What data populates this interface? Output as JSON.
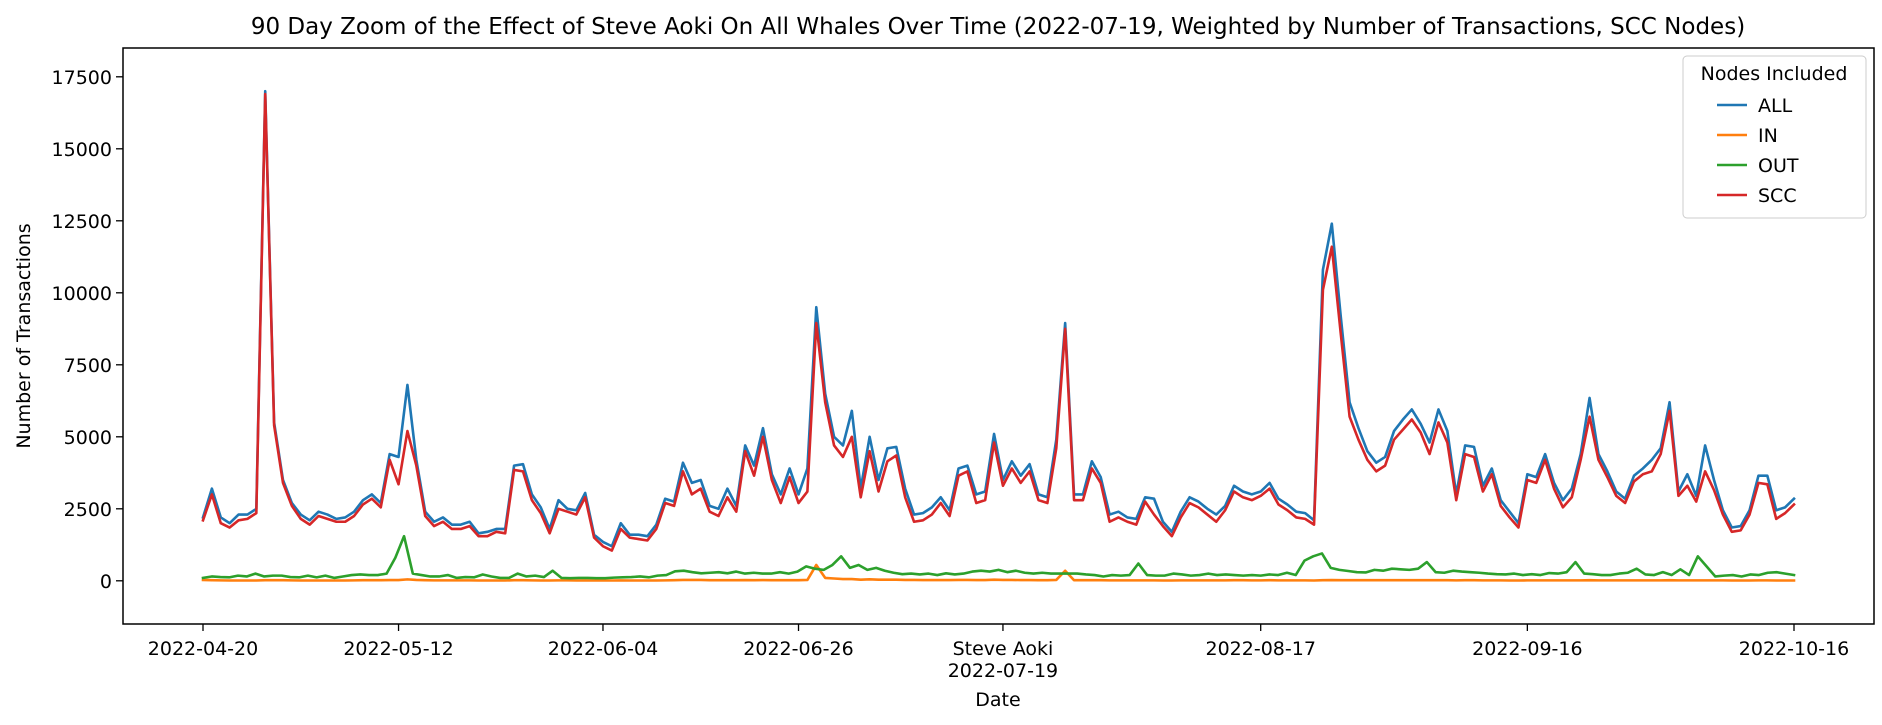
{
  "chart_data": {
    "type": "line",
    "title": "90 Day Zoom of the Effect of Steve Aoki On All Whales Over Time (2022-07-19, Weighted by Number of Transactions, SCC Nodes)",
    "xlabel": "Date",
    "ylabel": "Number of Transactions",
    "x_start": "2022-04-20",
    "x_end": "2022-10-16",
    "x_ticks": [
      "2022-04-20",
      "2022-05-12",
      "2022-06-04",
      "2022-06-26",
      "2022-07-19",
      "2022-08-17",
      "2022-09-16",
      "2022-10-16"
    ],
    "event_label": "Steve Aoki",
    "ylim": [
      -1500,
      18500
    ],
    "y_ticks": [
      0,
      2500,
      5000,
      7500,
      10000,
      12500,
      15000,
      17500
    ],
    "y_tick_labels": [
      "0",
      "2500",
      "5000",
      "7500",
      "10000",
      "12500",
      "15000",
      "17500"
    ],
    "grid": false,
    "legend": {
      "title": "Nodes Included",
      "placement": "top-right"
    },
    "series": [
      {
        "name": "ALL",
        "color": "#1f77b4",
        "values": [
          2200,
          3200,
          2200,
          2000,
          2300,
          2300,
          2500,
          17000,
          5500,
          3500,
          2700,
          2300,
          2100,
          2400,
          2300,
          2150,
          2200,
          2400,
          2800,
          3000,
          2700,
          4400,
          4300,
          6800,
          4200,
          2400,
          2050,
          2200,
          1950,
          1950,
          2050,
          1650,
          1700,
          1800,
          1800,
          4000,
          4050,
          3000,
          2550,
          1800,
          2800,
          2500,
          2450,
          3050,
          1600,
          1350,
          1200,
          2000,
          1600,
          1600,
          1550,
          1950,
          2850,
          2750,
          4100,
          3400,
          3500,
          2600,
          2500,
          3200,
          2600,
          4700,
          4000,
          5300,
          3700,
          3000,
          3900,
          3000,
          3900,
          9500,
          6500,
          5000,
          4700,
          5900,
          3200,
          5000,
          3500,
          4600,
          4650,
          3200,
          2300,
          2350,
          2550,
          2900,
          2450,
          3900,
          4000,
          3000,
          3100,
          5100,
          3500,
          4150,
          3650,
          4050,
          3000,
          2900,
          4900,
          8950,
          3000,
          3000,
          4150,
          3600,
          2300,
          2400,
          2200,
          2150,
          2900,
          2850,
          2050,
          1700,
          2400,
          2900,
          2750,
          2500,
          2300,
          2600,
          3300,
          3100,
          3000,
          3100,
          3400,
          2850,
          2650,
          2400,
          2350,
          2100,
          10800,
          12400,
          9200,
          6200,
          5300,
          4500,
          4100,
          4300,
          5200,
          5600,
          5950,
          5450,
          4800,
          5950,
          5200,
          3000,
          4700,
          4650,
          3300,
          3900,
          2800,
          2400,
          2000,
          3700,
          3600,
          4400,
          3400,
          2800,
          3200,
          4400,
          6350,
          4400,
          3800,
          3100,
          2850,
          3650,
          3900,
          4200,
          4600,
          6200,
          3100,
          3700,
          2950,
          4700,
          3500,
          2450,
          1850,
          1900,
          2450,
          3650,
          3650,
          2450,
          2550,
          2850
        ]
      },
      {
        "name": "IN",
        "color": "#ff7f0e",
        "values": [
          30,
          20,
          15,
          10,
          10,
          10,
          10,
          20,
          20,
          20,
          15,
          10,
          10,
          10,
          10,
          10,
          10,
          15,
          20,
          20,
          20,
          25,
          25,
          50,
          30,
          20,
          15,
          15,
          15,
          15,
          15,
          10,
          10,
          10,
          10,
          20,
          20,
          15,
          10,
          10,
          15,
          15,
          10,
          15,
          10,
          10,
          10,
          15,
          10,
          10,
          10,
          10,
          15,
          20,
          30,
          30,
          30,
          20,
          20,
          20,
          20,
          25,
          20,
          25,
          20,
          20,
          20,
          20,
          30,
          550,
          100,
          80,
          60,
          60,
          40,
          50,
          40,
          40,
          40,
          30,
          30,
          25,
          25,
          25,
          25,
          30,
          30,
          25,
          25,
          40,
          30,
          30,
          25,
          25,
          20,
          20,
          30,
          350,
          20,
          20,
          20,
          20,
          15,
          15,
          15,
          15,
          15,
          15,
          10,
          10,
          15,
          15,
          15,
          15,
          15,
          15,
          20,
          20,
          15,
          15,
          20,
          15,
          15,
          15,
          15,
          10,
          20,
          25,
          20,
          20,
          20,
          20,
          20,
          20,
          20,
          20,
          20,
          20,
          20,
          20,
          20,
          15,
          20,
          20,
          15,
          15,
          15,
          10,
          10,
          15,
          15,
          15,
          15,
          15,
          15,
          15,
          20,
          15,
          15,
          15,
          15,
          15,
          15,
          15,
          15,
          20,
          15,
          15,
          15,
          15,
          15,
          15,
          10,
          10,
          10,
          15,
          15,
          10,
          10,
          10
        ]
      },
      {
        "name": "OUT",
        "color": "#2ca02c",
        "values": [
          100,
          150,
          130,
          120,
          180,
          150,
          250,
          150,
          180,
          180,
          130,
          120,
          180,
          120,
          180,
          100,
          150,
          200,
          220,
          200,
          200,
          250,
          800,
          1550,
          250,
          200,
          150,
          150,
          200,
          100,
          130,
          120,
          220,
          150,
          100,
          100,
          250,
          150,
          180,
          130,
          350,
          100,
          90,
          100,
          100,
          90,
          90,
          110,
          120,
          130,
          150,
          120,
          180,
          200,
          330,
          350,
          300,
          260,
          280,
          300,
          260,
          320,
          250,
          280,
          250,
          250,
          300,
          250,
          320,
          500,
          420,
          380,
          550,
          850,
          450,
          550,
          380,
          450,
          350,
          280,
          230,
          250,
          220,
          250,
          200,
          260,
          220,
          250,
          320,
          350,
          320,
          380,
          300,
          350,
          280,
          250,
          280,
          250,
          250,
          250,
          250,
          220,
          200,
          150,
          200,
          180,
          200,
          600,
          200,
          180,
          180,
          250,
          220,
          180,
          200,
          250,
          200,
          220,
          200,
          180,
          200,
          180,
          220,
          200,
          280,
          200,
          700,
          850,
          950,
          450,
          380,
          340,
          300,
          290,
          380,
          350,
          420,
          400,
          380,
          420,
          650,
          300,
          280,
          350,
          320,
          300,
          280,
          250,
          230,
          220,
          250,
          200,
          230,
          200,
          270,
          250,
          300,
          650,
          250,
          230,
          200,
          200,
          250,
          280,
          420,
          220,
          200,
          300,
          200,
          400,
          200,
          850,
          500,
          150,
          180,
          200,
          150,
          220,
          200,
          280,
          300,
          250,
          200
        ]
      },
      {
        "name": "SCC",
        "color": "#d62728",
        "values": [
          2100,
          3000,
          2000,
          1850,
          2100,
          2150,
          2350,
          16900,
          5400,
          3400,
          2600,
          2150,
          1950,
          2250,
          2150,
          2050,
          2050,
          2250,
          2650,
          2850,
          2550,
          4200,
          3350,
          5200,
          4000,
          2250,
          1900,
          2050,
          1800,
          1800,
          1900,
          1550,
          1550,
          1700,
          1650,
          3850,
          3800,
          2800,
          2350,
          1650,
          2500,
          2400,
          2300,
          2900,
          1500,
          1200,
          1050,
          1800,
          1500,
          1450,
          1400,
          1800,
          2700,
          2600,
          3800,
          3000,
          3200,
          2400,
          2250,
          2900,
          2400,
          4500,
          3650,
          5000,
          3500,
          2700,
          3600,
          2700,
          3100,
          8950,
          6200,
          4700,
          4300,
          5000,
          2900,
          4500,
          3100,
          4150,
          4350,
          2900,
          2050,
          2100,
          2300,
          2700,
          2250,
          3650,
          3800,
          2700,
          2800,
          4800,
          3300,
          3900,
          3400,
          3800,
          2800,
          2700,
          4600,
          8750,
          2800,
          2800,
          3900,
          3400,
          2050,
          2200,
          2050,
          1950,
          2750,
          2300,
          1900,
          1550,
          2200,
          2700,
          2550,
          2300,
          2050,
          2450,
          3100,
          2900,
          2800,
          2950,
          3200,
          2650,
          2450,
          2200,
          2150,
          1950,
          10100,
          11600,
          8600,
          5700,
          4900,
          4200,
          3800,
          4000,
          4900,
          5250,
          5600,
          5150,
          4400,
          5500,
          4800,
          2800,
          4400,
          4300,
          3100,
          3700,
          2600,
          2200,
          1850,
          3500,
          3400,
          4200,
          3200,
          2550,
          2900,
          4200,
          5700,
          4200,
          3600,
          2950,
          2700,
          3450,
          3700,
          3800,
          4400,
          5900,
          2950,
          3300,
          2750,
          3800,
          3150,
          2300,
          1700,
          1750,
          2300,
          3400,
          3350,
          2150,
          2350,
          2650
        ]
      }
    ]
  }
}
